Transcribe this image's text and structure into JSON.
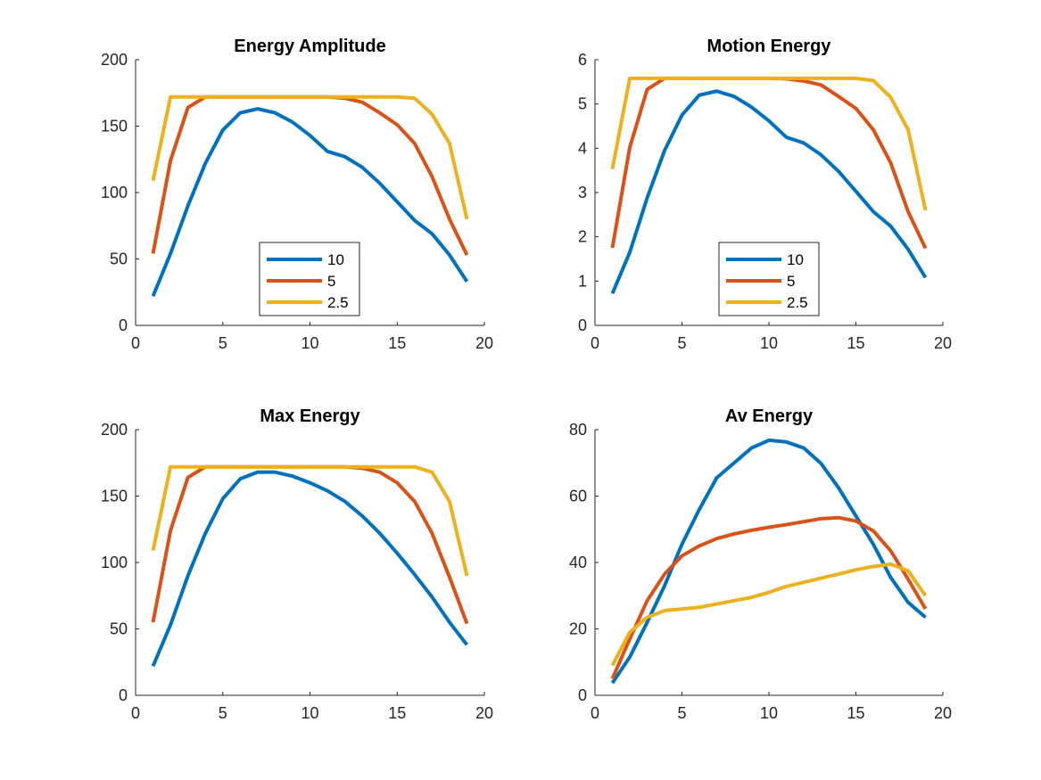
{
  "colors": {
    "series1": "#0072BD",
    "series2": "#D95319",
    "series3": "#EDB120",
    "axis": "#262626"
  },
  "chart_data": [
    {
      "type": "line",
      "title": "Energy Amplitude",
      "xlim": [
        0,
        20
      ],
      "ylim": [
        0,
        200
      ],
      "xticks": [
        0,
        5,
        10,
        15,
        20
      ],
      "yticks": [
        0,
        50,
        100,
        150,
        200
      ],
      "x": [
        1,
        2,
        3,
        4,
        5,
        6,
        7,
        8,
        9,
        10,
        11,
        12,
        13,
        14,
        15,
        16,
        17,
        18,
        19
      ],
      "legend": "inside-bottom-center",
      "series": [
        {
          "name": "10",
          "values": [
            22,
            54,
            90,
            122,
            147,
            160,
            163,
            160,
            153,
            143,
            131,
            127,
            119,
            107,
            93,
            79,
            69,
            53,
            33
          ]
        },
        {
          "name": "5",
          "values": [
            54,
            124,
            164,
            172,
            172,
            172,
            172,
            172,
            172,
            172,
            172,
            171,
            168,
            160,
            151,
            137,
            112,
            80,
            53
          ]
        },
        {
          "name": "2.5",
          "values": [
            109,
            172,
            172,
            172,
            172,
            172,
            172,
            172,
            172,
            172,
            172,
            172,
            172,
            172,
            172,
            171,
            159,
            137,
            80
          ]
        }
      ]
    },
    {
      "type": "line",
      "title": "Motion Energy",
      "xlim": [
        0,
        20
      ],
      "ylim": [
        0,
        6
      ],
      "xticks": [
        0,
        5,
        10,
        15,
        20
      ],
      "yticks": [
        0,
        1,
        2,
        3,
        4,
        5,
        6
      ],
      "x": [
        1,
        2,
        3,
        4,
        5,
        6,
        7,
        8,
        9,
        10,
        11,
        12,
        13,
        14,
        15,
        16,
        17,
        18,
        19
      ],
      "legend": "inside-bottom-center",
      "series": [
        {
          "name": "10",
          "values": [
            0.72,
            1.65,
            2.88,
            3.95,
            4.75,
            5.2,
            5.29,
            5.17,
            4.93,
            4.62,
            4.25,
            4.12,
            3.85,
            3.48,
            3.03,
            2.57,
            2.24,
            1.72,
            1.08
          ]
        },
        {
          "name": "5",
          "values": [
            1.75,
            4.02,
            5.33,
            5.58,
            5.58,
            5.58,
            5.58,
            5.58,
            5.58,
            5.58,
            5.57,
            5.52,
            5.43,
            5.17,
            4.9,
            4.42,
            3.67,
            2.57,
            1.74
          ]
        },
        {
          "name": "2.5",
          "values": [
            3.53,
            5.58,
            5.58,
            5.58,
            5.58,
            5.58,
            5.58,
            5.58,
            5.58,
            5.58,
            5.58,
            5.58,
            5.58,
            5.58,
            5.58,
            5.53,
            5.15,
            4.42,
            2.6
          ]
        }
      ]
    },
    {
      "type": "line",
      "title": "Max Energy",
      "xlim": [
        0,
        20
      ],
      "ylim": [
        0,
        200
      ],
      "xticks": [
        0,
        5,
        10,
        15,
        20
      ],
      "yticks": [
        0,
        50,
        100,
        150,
        200
      ],
      "x": [
        1,
        2,
        3,
        4,
        5,
        6,
        7,
        8,
        9,
        10,
        11,
        12,
        13,
        14,
        15,
        16,
        17,
        18,
        19
      ],
      "series": [
        {
          "name": "10",
          "values": [
            22,
            53,
            90,
            122,
            148,
            163,
            168,
            168,
            165,
            160,
            154,
            146,
            135,
            122,
            107,
            91,
            74,
            55,
            38
          ]
        },
        {
          "name": "5",
          "values": [
            55,
            124,
            164,
            172,
            172,
            172,
            172,
            172,
            172,
            172,
            172,
            172,
            171,
            168,
            160,
            146,
            122,
            89,
            54
          ]
        },
        {
          "name": "2.5",
          "values": [
            109,
            172,
            172,
            172,
            172,
            172,
            172,
            172,
            172,
            172,
            172,
            172,
            172,
            172,
            172,
            172,
            168,
            146,
            90
          ]
        }
      ]
    },
    {
      "type": "line",
      "title": "Av Energy",
      "xlim": [
        0,
        20
      ],
      "ylim": [
        0,
        80
      ],
      "xticks": [
        0,
        5,
        10,
        15,
        20
      ],
      "yticks": [
        0,
        20,
        40,
        60,
        80
      ],
      "x": [
        1,
        2,
        3,
        4,
        5,
        6,
        7,
        8,
        9,
        10,
        11,
        12,
        13,
        14,
        15,
        16,
        17,
        18,
        19
      ],
      "series": [
        {
          "name": "10",
          "values": [
            3.7,
            11.5,
            22,
            33,
            45.5,
            56,
            65.5,
            70,
            74.5,
            76.8,
            76.3,
            74.5,
            69.8,
            62.5,
            54,
            45.5,
            35.5,
            28,
            23.5
          ]
        },
        {
          "name": "5",
          "values": [
            5,
            17,
            28.5,
            36.5,
            42,
            45,
            47.2,
            48.6,
            49.7,
            50.6,
            51.4,
            52.3,
            53.2,
            53.5,
            52.5,
            49.5,
            43.5,
            35,
            26
          ]
        },
        {
          "name": "2.5",
          "values": [
            9,
            19,
            23.5,
            25.5,
            26,
            26.5,
            27.5,
            28.5,
            29.5,
            31,
            32.8,
            34,
            35.3,
            36.5,
            37.8,
            38.8,
            39.5,
            37.5,
            30
          ]
        }
      ]
    }
  ]
}
